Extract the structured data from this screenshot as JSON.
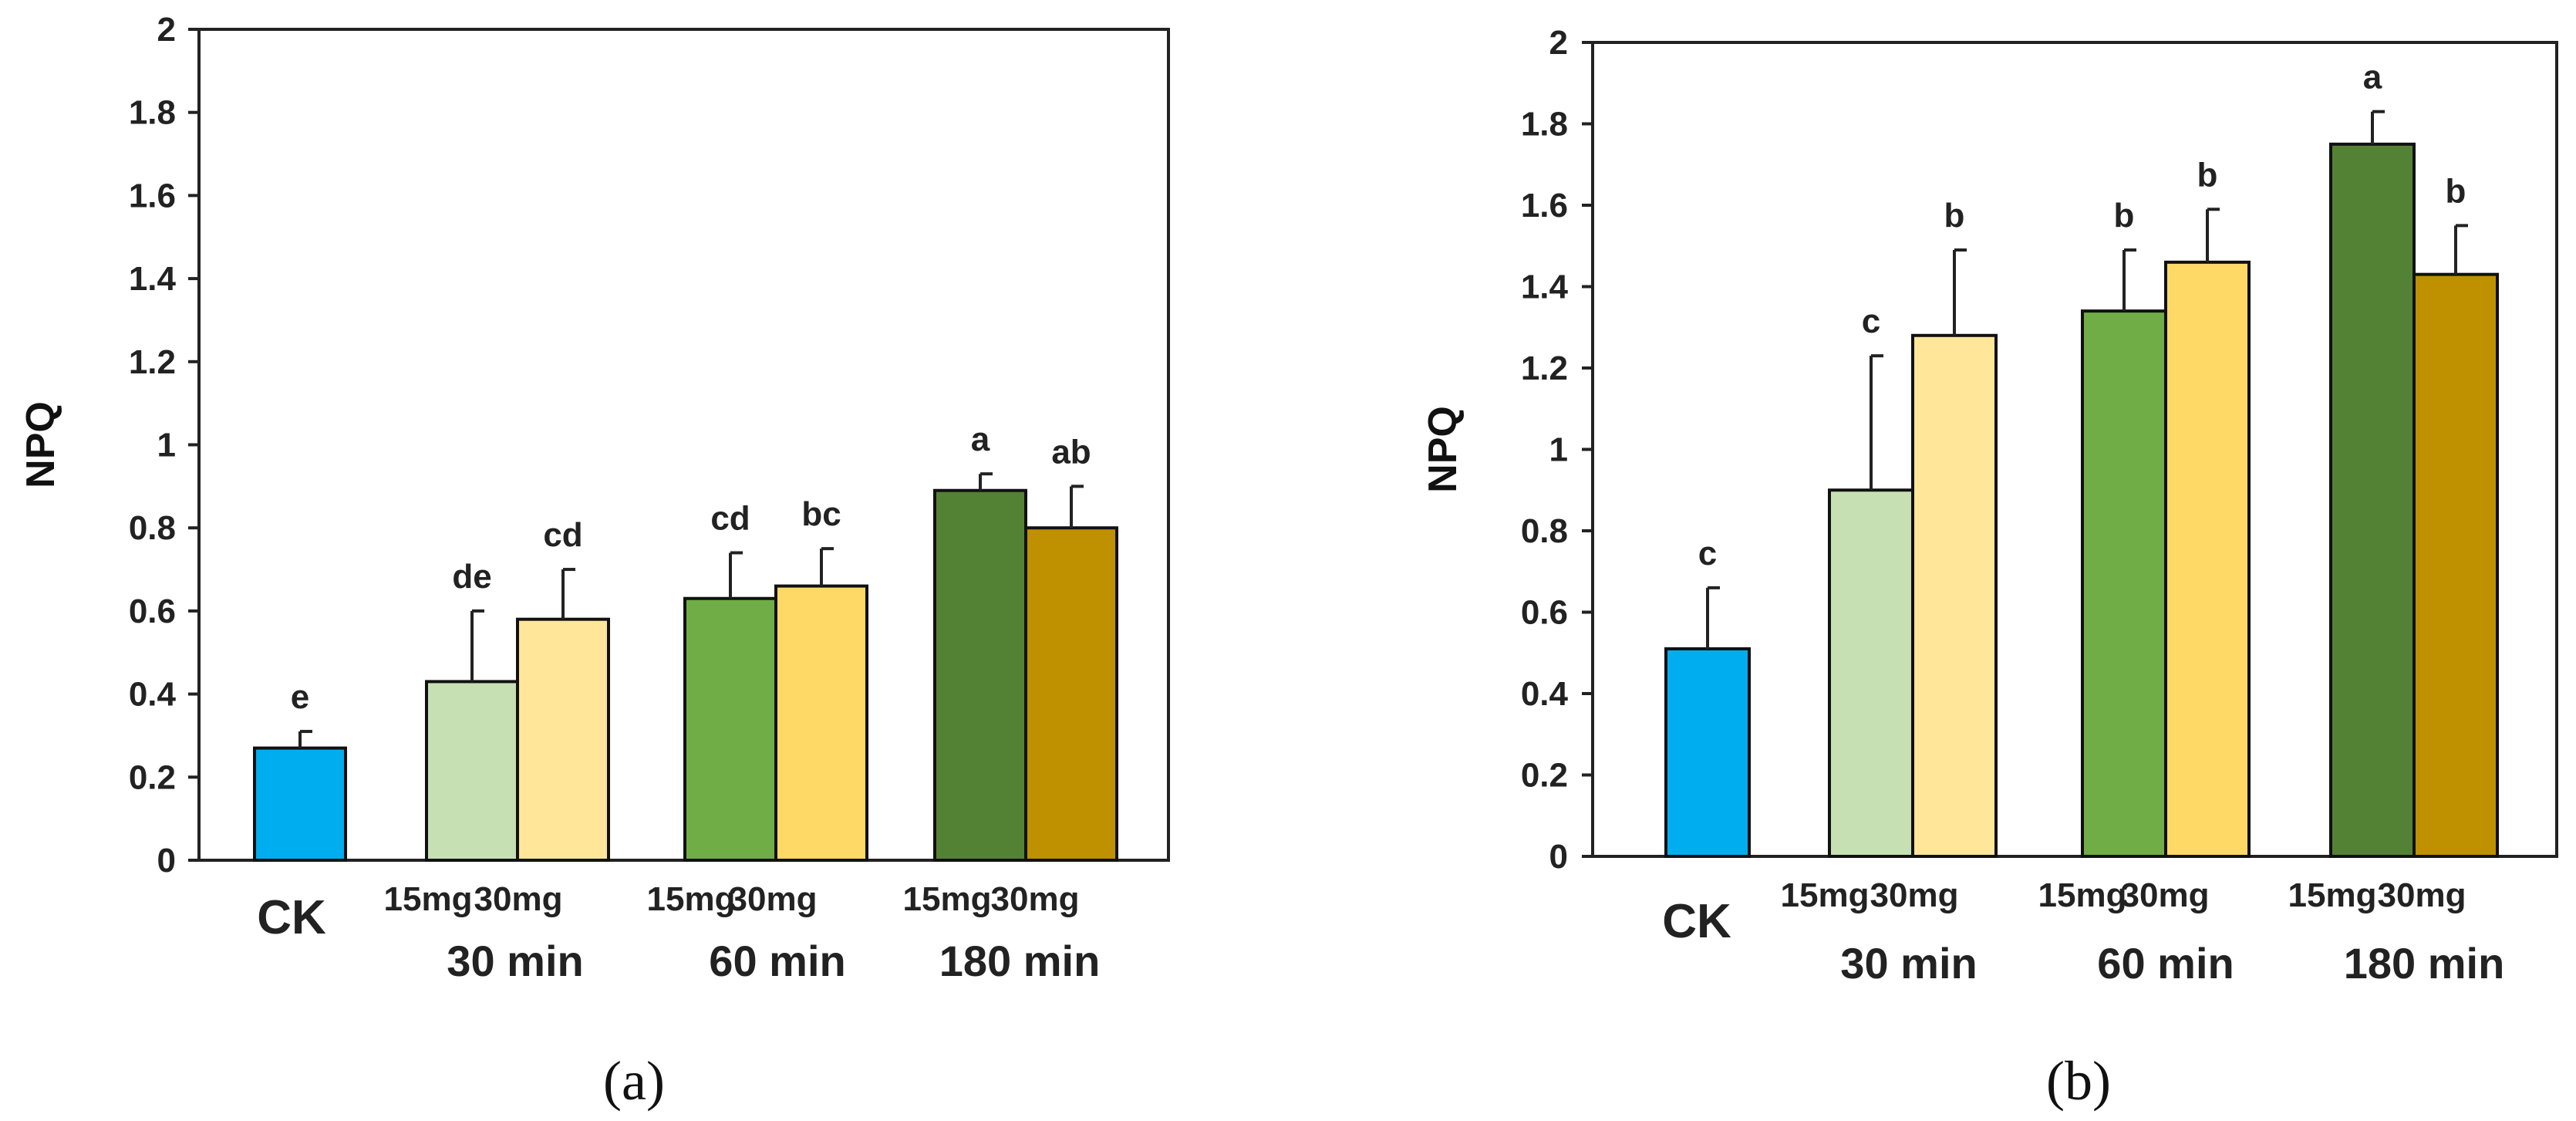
{
  "figure": {
    "panel_labels": [
      "(a)",
      "(b)"
    ]
  },
  "chart_data": [
    {
      "type": "bar",
      "panel": "(a)",
      "ylabel": "NPQ",
      "ylim": [
        0,
        2
      ],
      "yticks": [
        "0",
        "0.2",
        "0.4",
        "0.6",
        "0.8",
        "1",
        "1.2",
        "1.4",
        "1.6",
        "1.8",
        "2"
      ],
      "bars": [
        {
          "category": "CK",
          "value": 0.27,
          "error": 0.04,
          "sig": "e",
          "color": "#00AEEF"
        },
        {
          "category": "30 min 15mg",
          "value": 0.43,
          "error": 0.17,
          "sig": "de",
          "color": "#C6E0B4"
        },
        {
          "category": "30 min 30mg",
          "value": 0.58,
          "error": 0.12,
          "sig": "cd",
          "color": "#FFE699"
        },
        {
          "category": "60 min 15mg",
          "value": 0.63,
          "error": 0.11,
          "sig": "cd",
          "color": "#70AD47"
        },
        {
          "category": "60 min 30mg",
          "value": 0.66,
          "error": 0.09,
          "sig": "bc",
          "color": "#FFD966"
        },
        {
          "category": "180 min 15mg",
          "value": 0.89,
          "error": 0.04,
          "sig": "a",
          "color": "#548235"
        },
        {
          "category": "180 min 30mg",
          "value": 0.8,
          "error": 0.1,
          "sig": "ab",
          "color": "#BF9000"
        }
      ],
      "x_labels": {
        "ck": "CK",
        "doses": [
          "15mg",
          "30mg",
          "15mg",
          "30mg",
          "15mg",
          "30mg"
        ],
        "groups": [
          "30 min",
          "60 min",
          "180 min"
        ]
      }
    },
    {
      "type": "bar",
      "panel": "(b)",
      "ylabel": "NPQ",
      "ylim": [
        0,
        2
      ],
      "yticks": [
        "0",
        "0.2",
        "0.4",
        "0.6",
        "0.8",
        "1",
        "1.2",
        "1.4",
        "1.6",
        "1.8",
        "2"
      ],
      "bars": [
        {
          "category": "CK",
          "value": 0.51,
          "error": 0.15,
          "sig": "c",
          "color": "#00AEEF"
        },
        {
          "category": "30 min 15mg",
          "value": 0.9,
          "error": 0.33,
          "sig": "c",
          "color": "#C6E0B4"
        },
        {
          "category": "30 min 30mg",
          "value": 1.28,
          "error": 0.21,
          "sig": "b",
          "color": "#FFE699"
        },
        {
          "category": "60 min 15mg",
          "value": 1.34,
          "error": 0.15,
          "sig": "b",
          "color": "#70AD47"
        },
        {
          "category": "60 min 30mg",
          "value": 1.46,
          "error": 0.13,
          "sig": "b",
          "color": "#FFD966"
        },
        {
          "category": "180 min 15mg",
          "value": 1.75,
          "error": 0.08,
          "sig": "a",
          "color": "#548235"
        },
        {
          "category": "180 min 30mg",
          "value": 1.43,
          "error": 0.12,
          "sig": "b",
          "color": "#BF9000"
        }
      ],
      "x_labels": {
        "ck": "CK",
        "doses": [
          "15mg",
          "30mg",
          "15mg",
          "30mg",
          "15mg",
          "30mg"
        ],
        "groups": [
          "30 min",
          "60 min",
          "180 min"
        ]
      }
    }
  ]
}
